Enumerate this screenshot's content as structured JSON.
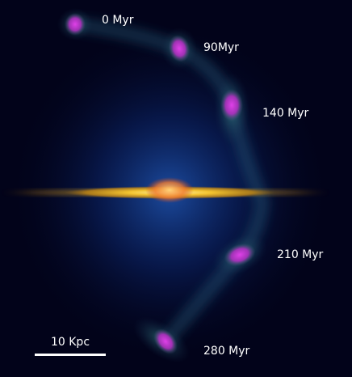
{
  "snapshots": [
    {
      "label": "0 Myr"
    },
    {
      "label": "90Myr"
    },
    {
      "label": "140 Myr"
    },
    {
      "label": "210 Myr"
    },
    {
      "label": "280 Myr"
    }
  ],
  "scale_bar": {
    "label": "10 Kpc"
  }
}
